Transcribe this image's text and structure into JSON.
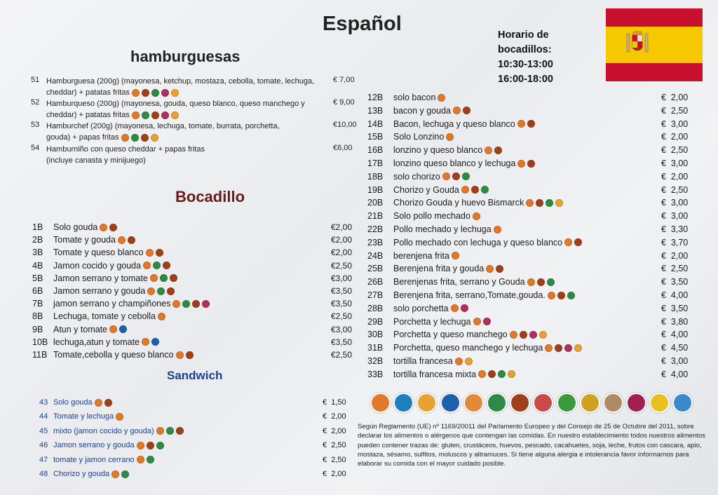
{
  "title": "Español",
  "horario": [
    "Horario de",
    "bocadillos:",
    "10:30-13:00",
    "16:00-18:00"
  ],
  "hamburguesas": {
    "heading": "hamburguesas",
    "items": [
      {
        "num": "51",
        "line1": "Hamburguesa (200g) (mayonesa, ketchup, mostaza, cebolla, tomate, lechuga,",
        "line2": "cheddar) + patatas fritas",
        "price": "€ 7,00",
        "allergens": [
          "gl",
          "mi",
          "ce",
          "mo",
          "eg"
        ]
      },
      {
        "num": "52",
        "line1": "Hamburqueso (200g) (mayonesa, gouda, queso blanco, queso manchego y",
        "line2": "cheddar) + patatas fritas",
        "price": "€ 9,00",
        "allergens": [
          "gl",
          "ce",
          "mi",
          "mo",
          "eg"
        ]
      },
      {
        "num": "53",
        "line1": "Hamburchef (200g) (mayonesa, lechuga, tomate, burrata, porchetta,",
        "line2": "gouda) + papas fritas",
        "price": "€10,00",
        "allergens": [
          "gl",
          "ce",
          "mi",
          "eg"
        ]
      },
      {
        "num": "54",
        "line1": "Hamburniño con queso cheddar + papas fritas",
        "line2": "(incluye canasta y minijuego)",
        "price": "€6,00",
        "allergens": [
          "mi",
          "mo",
          "gl",
          "eg"
        ]
      }
    ]
  },
  "bocadillo": {
    "heading": "Bocadillo",
    "items": [
      {
        "num": "1B",
        "name": "Solo gouda",
        "price": "€2,00",
        "allergens": [
          "gl",
          "mi"
        ]
      },
      {
        "num": "2B",
        "name": "Tomate y gouda",
        "price": "€2,00",
        "allergens": [
          "gl",
          "mi"
        ]
      },
      {
        "num": "3B",
        "name": "Tomate y queso blanco",
        "price": "€2,00",
        "allergens": [
          "gl",
          "mi"
        ]
      },
      {
        "num": "4B",
        "name": "Jamon cocido y gouda",
        "price": "€2,50",
        "allergens": [
          "gl",
          "ce",
          "mi"
        ]
      },
      {
        "num": "5B",
        "name": "Jamon serrano y tomate",
        "price": "€3,00",
        "allergens": [
          "gl",
          "ce",
          "mi"
        ]
      },
      {
        "num": "6B",
        "name": "Jamon serrano y gouda",
        "price": "€3,50",
        "allergens": [
          "gl",
          "ce",
          "mi"
        ]
      },
      {
        "num": "7B",
        "name": "jamon serrano y champiñones",
        "price": "€3,50",
        "allergens": [
          "gl",
          "ce",
          "mi",
          "mo"
        ]
      },
      {
        "num": "8B",
        "name": "Lechuga, tomate y cebolla",
        "price": "€2,50",
        "allergens": [
          "gl"
        ]
      },
      {
        "num": "9B",
        "name": "Atun y tomate",
        "price": "€3,00",
        "allergens": [
          "gl",
          "fi"
        ]
      },
      {
        "num": "10B",
        "name": "lechuga,atun y tomate",
        "price": "€3,50",
        "allergens": [
          "gl",
          "fi"
        ]
      },
      {
        "num": "11B",
        "name": "Tomate,cebolla y queso blanco",
        "price": "€2,50",
        "allergens": [
          "gl",
          "mi"
        ]
      }
    ]
  },
  "sandwich": {
    "heading": "Sandwich",
    "items": [
      {
        "num": "43",
        "name": "Solo gouda",
        "price": "€  1,50",
        "allergens": [
          "gl",
          "mi"
        ]
      },
      {
        "num": "44",
        "name": "Tomate y lechuga",
        "price": "€  2,00",
        "allergens": [
          "gl"
        ]
      },
      {
        "num": "45",
        "name": "mixto (jamon cocido y gouda)",
        "price": "€  2,00",
        "allergens": [
          "gl",
          "ce",
          "mi"
        ]
      },
      {
        "num": "46",
        "name": "Jamon serrano y gouda",
        "price": "€  2,50",
        "allergens": [
          "gl",
          "mi",
          "ce"
        ]
      },
      {
        "num": "47",
        "name": "tomate y jamon cerrano",
        "price": "€  2,50",
        "allergens": [
          "gl",
          "ce"
        ]
      },
      {
        "num": "48",
        "name": "Chorizo y gouda",
        "price": "€  2,00",
        "allergens": [
          "gl",
          "ce"
        ]
      }
    ]
  },
  "right_items": [
    {
      "num": "12B",
      "name": "solo bacon",
      "price": "€  2,00",
      "allergens": [
        "gl"
      ]
    },
    {
      "num": "13B",
      "name": "bacon y gouda",
      "price": "€  2,50",
      "allergens": [
        "gl",
        "mi"
      ]
    },
    {
      "num": "14B",
      "name": "Bacon, lechuga y queso blanco",
      "price": "€  3,00",
      "allergens": [
        "gl",
        "mi"
      ]
    },
    {
      "num": "15B",
      "name": "Solo Lonzino",
      "price": "€  2,00",
      "allergens": [
        "gl"
      ]
    },
    {
      "num": "16B",
      "name": "lonzino y queso blanco",
      "price": "€  2,50",
      "allergens": [
        "gl",
        "mi"
      ]
    },
    {
      "num": "17B",
      "name": "lonzino queso blanco y lechuga",
      "price": "€  3,00",
      "allergens": [
        "gl",
        "mi"
      ]
    },
    {
      "num": "18B",
      "name": "solo chorizo",
      "price": "€  2,00",
      "allergens": [
        "gl",
        "mi",
        "ce"
      ]
    },
    {
      "num": "19B",
      "name": "Chorizo y Gouda",
      "price": "€  2,50",
      "allergens": [
        "gl",
        "mi",
        "ce"
      ]
    },
    {
      "num": "20B",
      "name": "Chorizo Gouda y huevo Bismarck",
      "price": "€  3,00",
      "allergens": [
        "gl",
        "mi",
        "ce",
        "eg"
      ]
    },
    {
      "num": "21B",
      "name": "Solo pollo mechado",
      "price": "€  3,00",
      "allergens": [
        "gl"
      ]
    },
    {
      "num": "22B",
      "name": "Pollo mechado y lechuga",
      "price": "€  3,30",
      "allergens": [
        "gl"
      ]
    },
    {
      "num": "23B",
      "name": "Pollo mechado con lechuga y queso blanco",
      "price": "€  3,70",
      "allergens": [
        "gl",
        "mi"
      ]
    },
    {
      "num": "24B",
      "name": "berenjena frita",
      "price": "€  2,00",
      "allergens": [
        "gl"
      ]
    },
    {
      "num": "25B",
      "name": "Berenjena frita y gouda",
      "price": "€  2,50",
      "allergens": [
        "gl",
        "mi"
      ]
    },
    {
      "num": "26B",
      "name": "Berenjenas frita, serrano y Gouda",
      "price": "€  3,50",
      "allergens": [
        "gl",
        "mi",
        "ce"
      ]
    },
    {
      "num": "27B",
      "name": "Berenjena frita, serrano,Tomate,gouda.",
      "price": "€  4,00",
      "allergens": [
        "gl",
        "mi",
        "ce"
      ]
    },
    {
      "num": "28B",
      "name": "solo porchetta",
      "price": "€  3,50",
      "allergens": [
        "gl",
        "mo"
      ]
    },
    {
      "num": "29B",
      "name": "Porchetta y lechuga",
      "price": "€  3,80",
      "allergens": [
        "gl",
        "mo"
      ]
    },
    {
      "num": "30B",
      "name": "Porchetta y queso manchego",
      "price": "€  4,00",
      "allergens": [
        "gl",
        "mi",
        "mo",
        "eg"
      ]
    },
    {
      "num": "31B",
      "name": "Porchetta, queso manchego y lechuga",
      "price": "€  4,50",
      "allergens": [
        "gl",
        "mi",
        "mo",
        "eg"
      ]
    },
    {
      "num": "32B",
      "name": "tortilla francesa",
      "price": "€  3,00",
      "allergens": [
        "gl",
        "eg"
      ]
    },
    {
      "num": "33B",
      "name": "tortilla francesa mixta",
      "price": "€  4,00",
      "allergens": [
        "gl",
        "mi",
        "ce",
        "eg"
      ]
    }
  ],
  "allergen_colors": {
    "gl": "#e07a2a",
    "mi": "#a0401a",
    "ce": "#2f8a45",
    "fi": "#1f5fb0",
    "eg": "#e6a232",
    "mo": "#b03060"
  },
  "allergen_legend": [
    {
      "name": "gluten-icon",
      "color": "#e07a2a"
    },
    {
      "name": "crustaceans-icon",
      "color": "#1f7fbf"
    },
    {
      "name": "eggs-icon",
      "color": "#e6a232"
    },
    {
      "name": "fish-icon",
      "color": "#1f5fb0"
    },
    {
      "name": "peanuts-icon",
      "color": "#e08a3a"
    },
    {
      "name": "soy-icon",
      "color": "#2f8a45"
    },
    {
      "name": "milk-icon",
      "color": "#a0401a"
    },
    {
      "name": "nuts-icon",
      "color": "#c84a4a"
    },
    {
      "name": "celery-icon",
      "color": "#3b9a3b"
    },
    {
      "name": "mustard-icon",
      "color": "#d0a020"
    },
    {
      "name": "sesame-icon",
      "color": "#b08a60"
    },
    {
      "name": "sulphites-icon",
      "color": "#a02050"
    },
    {
      "name": "lupin-icon",
      "color": "#e8c020"
    },
    {
      "name": "molluscs-icon",
      "color": "#3a8acb"
    }
  ],
  "legal_text": "Según Reglamento (UE) nº 1169/20011 del Parlamento Europeo y del Consejo de 25 de Octubre del 2011, sobre declarar los alimentos o alérgenos que contengan las comidas. En nuestro establecimiento todos nuestros alimentos pueden contener trazas de: gluten, crustáceos, huevos, pescado, cacahuetes, soja, leche, frutos con cascara, apio, mostaza, sésamo, sulfitos, moluscos y altramuces. Si tiene alguna alergia e intolerancia favor informarnos para elaborar su comida con el mayor cuidado posible."
}
